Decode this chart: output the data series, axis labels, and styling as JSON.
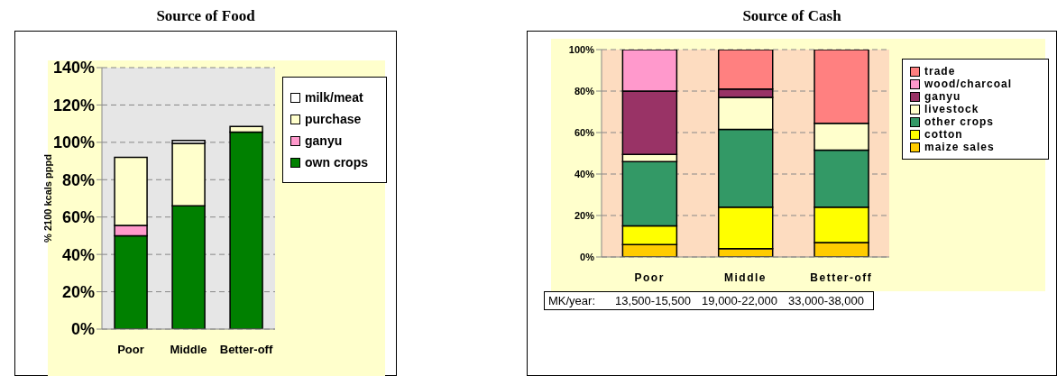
{
  "chart_data": [
    {
      "type": "bar",
      "title": "Source of Food",
      "ylabel": "% 2100 kcals pppd",
      "categories": [
        "Poor",
        "Middle",
        "Better-off"
      ],
      "stacked": true,
      "ylim": [
        0,
        140
      ],
      "yticks": [
        {
          "value": 0,
          "label": "0%"
        },
        {
          "value": 20,
          "label": "20%"
        },
        {
          "value": 40,
          "label": "40%"
        },
        {
          "value": 60,
          "label": "60%"
        },
        {
          "value": 80,
          "label": "80%"
        },
        {
          "value": 100,
          "label": "100%"
        },
        {
          "value": 120,
          "label": "120%"
        },
        {
          "value": 140,
          "label": "140%"
        }
      ],
      "grid": "y",
      "legend": "right",
      "series": [
        {
          "name": "own crops",
          "color": "#008000",
          "values": [
            50,
            66,
            105.5
          ]
        },
        {
          "name": "ganyu",
          "color": "#ff99cc",
          "values": [
            5.5,
            0,
            0
          ]
        },
        {
          "name": "purchase",
          "color": "#ffffcc",
          "values": [
            36.5,
            33.5,
            3
          ]
        },
        {
          "name": "milk/meat",
          "color": "#ffffff",
          "values": [
            0,
            1.5,
            0
          ]
        }
      ]
    },
    {
      "type": "bar",
      "title": "Source of Cash",
      "categories": [
        "Poor",
        "Middle",
        "Better-off"
      ],
      "stacked": true,
      "ylim": [
        0,
        100
      ],
      "yticks": [
        {
          "value": 0,
          "label": "0%"
        },
        {
          "value": 20,
          "label": "20%"
        },
        {
          "value": 40,
          "label": "40%"
        },
        {
          "value": 60,
          "label": "60%"
        },
        {
          "value": 80,
          "label": "80%"
        },
        {
          "value": 100,
          "label": "100%"
        }
      ],
      "grid": "y",
      "legend": "right",
      "annotations": [
        "MK/year:",
        "13,500-15,500",
        "19,000-22,000",
        "33,000-38,000"
      ],
      "series": [
        {
          "name": "maize sales",
          "color": "#ffcc00",
          "values": [
            6,
            4,
            7
          ]
        },
        {
          "name": "cotton",
          "color": "#ffff00",
          "values": [
            9,
            20,
            17
          ]
        },
        {
          "name": "other crops",
          "color": "#339966",
          "values": [
            31,
            37.5,
            27.5
          ]
        },
        {
          "name": "livestock",
          "color": "#ffffcc",
          "values": [
            3.5,
            15.5,
            13
          ]
        },
        {
          "name": "ganyu",
          "color": "#993366",
          "values": [
            30.5,
            4,
            0
          ]
        },
        {
          "name": "wood/charcoal",
          "color": "#ff99cc",
          "values": [
            20,
            0,
            0
          ]
        },
        {
          "name": "trade",
          "color": "#ff8080",
          "values": [
            0,
            19,
            35.5
          ]
        }
      ]
    }
  ]
}
